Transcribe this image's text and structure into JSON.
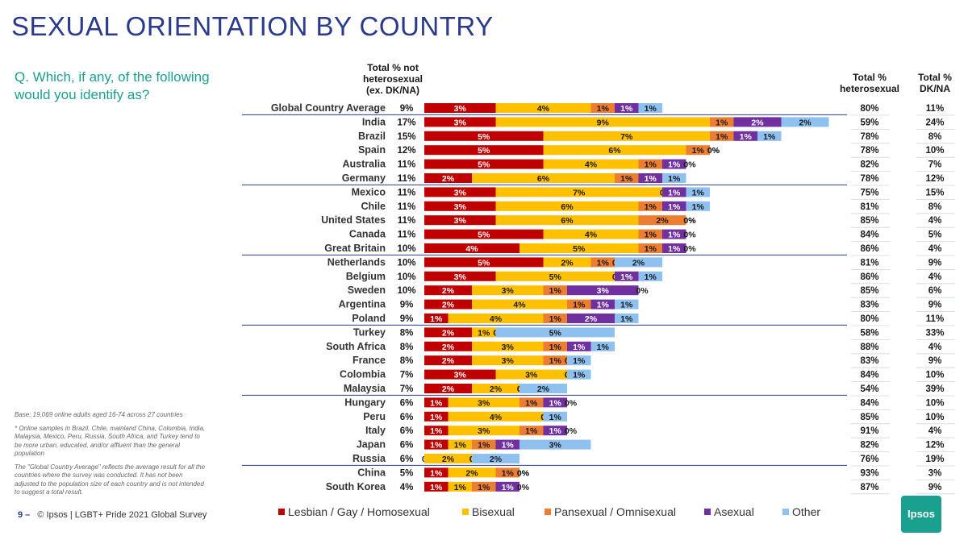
{
  "title": "SEXUAL ORIENTATION BY COUNTRY",
  "question": "Q. Which, if any, of the following would you identify as?",
  "base_note": [
    "Base: 19,069 online adults aged 16-74 across 27 countries",
    "* Online samples in Brazil, Chile, mainland China, Colombia, India, Malaysia, Mexico, Peru, Russia, South Africa, and Turkey tend to be more urban, educated, and/or affluent than the general population",
    "The \"Global Country Average\" reflects the average result for all the countries where the survey was conducted. It has not been adjusted to the population size of each country and is not intended to suggest a total result."
  ],
  "footer": {
    "page": "9 –",
    "text": "© Ipsos | LGBT+ Pride 2021 Global Survey"
  },
  "logo": "Ipsos",
  "chart_data": {
    "type": "bar",
    "stacked": true,
    "orientation": "horizontal",
    "columns": {
      "not_hetero": [
        "Total % not",
        "heterosexual",
        "(ex. DK/NA)"
      ],
      "hetero": [
        "Total %",
        "heterosexual"
      ],
      "dkna": [
        "Total %",
        "DK/NA"
      ]
    },
    "series_names": [
      "Lesbian / Gay / Homosexual",
      "Bisexual",
      "Pansexual / Omnisexual",
      "Asexual",
      "Other"
    ],
    "colors": [
      "#c00000",
      "#ffc000",
      "#ed7d31",
      "#7030a0",
      "#8ec1f0"
    ],
    "groups_end_after": [
      5,
      10,
      15,
      20,
      25
    ],
    "rows": [
      {
        "country": "Global Country Average",
        "total": "9%",
        "values": [
          3,
          4,
          1,
          1,
          1
        ],
        "labels": [
          "3%",
          "4%",
          "1%",
          "1%",
          "1%"
        ],
        "hetero": "80%",
        "dkna": "11%"
      },
      {
        "country": "India",
        "total": "17%",
        "values": [
          3,
          9,
          1,
          2,
          2
        ],
        "labels": [
          "3%",
          "9%",
          "1%",
          "2%",
          "2%"
        ],
        "hetero": "59%",
        "dkna": "24%"
      },
      {
        "country": "Brazil",
        "total": "15%",
        "values": [
          5,
          7,
          1,
          1,
          1
        ],
        "labels": [
          "5%",
          "7%",
          "1%",
          "1%",
          "1%"
        ],
        "hetero": "78%",
        "dkna": "8%"
      },
      {
        "country": "Spain",
        "total": "12%",
        "values": [
          5,
          6,
          1,
          0,
          0
        ],
        "labels": [
          "5%",
          "6%",
          "1%",
          "0%",
          "0%"
        ],
        "hetero": "78%",
        "dkna": "10%"
      },
      {
        "country": "Australia",
        "total": "11%",
        "values": [
          5,
          4,
          1,
          1,
          0
        ],
        "labels": [
          "5%",
          "4%",
          "1%",
          "1%",
          "0%"
        ],
        "hetero": "82%",
        "dkna": "7%"
      },
      {
        "country": "Germany",
        "total": "11%",
        "values": [
          2,
          6,
          1,
          1,
          1
        ],
        "labels": [
          "2%",
          "6%",
          "1%",
          "1%",
          "1%"
        ],
        "hetero": "78%",
        "dkna": "12%"
      },
      {
        "country": "Mexico",
        "total": "11%",
        "values": [
          3,
          7,
          0,
          1,
          1
        ],
        "labels": [
          "3%",
          "7%",
          "0%",
          "1%",
          "1%"
        ],
        "hetero": "75%",
        "dkna": "15%"
      },
      {
        "country": "Chile",
        "total": "11%",
        "values": [
          3,
          6,
          1,
          1,
          1
        ],
        "labels": [
          "3%",
          "6%",
          "1%",
          "1%",
          "1%"
        ],
        "hetero": "81%",
        "dkna": "8%"
      },
      {
        "country": "United States",
        "total": "11%",
        "values": [
          3,
          6,
          2,
          0,
          0
        ],
        "labels": [
          "3%",
          "6%",
          "2%",
          "0%",
          "0%"
        ],
        "hetero": "85%",
        "dkna": "4%"
      },
      {
        "country": "Canada",
        "total": "11%",
        "values": [
          5,
          4,
          1,
          1,
          0
        ],
        "labels": [
          "5%",
          "4%",
          "1%",
          "1%",
          "0%"
        ],
        "hetero": "84%",
        "dkna": "5%"
      },
      {
        "country": "Great Britain",
        "total": "10%",
        "values": [
          4,
          5,
          1,
          1,
          0
        ],
        "labels": [
          "4%",
          "5%",
          "1%",
          "1%",
          "0%"
        ],
        "hetero": "86%",
        "dkna": "4%"
      },
      {
        "country": "Netherlands",
        "total": "10%",
        "values": [
          5,
          2,
          1,
          0,
          2
        ],
        "labels": [
          "5%",
          "2%",
          "1%",
          "0%",
          "2%"
        ],
        "hetero": "81%",
        "dkna": "9%"
      },
      {
        "country": "Belgium",
        "total": "10%",
        "values": [
          3,
          5,
          0,
          1,
          1
        ],
        "labels": [
          "3%",
          "5%",
          "0%",
          "1%",
          "1%"
        ],
        "hetero": "86%",
        "dkna": "4%"
      },
      {
        "country": "Sweden",
        "total": "10%",
        "values": [
          2,
          3,
          1,
          3,
          0
        ],
        "labels": [
          "2%",
          "3%",
          "1%",
          "3%",
          "0%"
        ],
        "hetero": "85%",
        "dkna": "6%"
      },
      {
        "country": "Argentina",
        "total": "9%",
        "values": [
          2,
          4,
          1,
          1,
          1
        ],
        "labels": [
          "2%",
          "4%",
          "1%",
          "1%",
          "1%"
        ],
        "hetero": "83%",
        "dkna": "9%"
      },
      {
        "country": "Poland",
        "total": "9%",
        "values": [
          1,
          4,
          1,
          2,
          1
        ],
        "labels": [
          "1%",
          "4%",
          "1%",
          "2%",
          "1%"
        ],
        "hetero": "80%",
        "dkna": "11%"
      },
      {
        "country": "Turkey",
        "total": "8%",
        "values": [
          2,
          1,
          0,
          0,
          5
        ],
        "labels": [
          "2%",
          "1%",
          "0%",
          "0%",
          "5%"
        ],
        "hetero": "58%",
        "dkna": "33%"
      },
      {
        "country": "South Africa",
        "total": "8%",
        "values": [
          2,
          3,
          1,
          1,
          1
        ],
        "labels": [
          "2%",
          "3%",
          "1%",
          "1%",
          "1%"
        ],
        "hetero": "88%",
        "dkna": "4%"
      },
      {
        "country": "France",
        "total": "8%",
        "values": [
          2,
          3,
          1,
          0,
          1
        ],
        "labels": [
          "2%",
          "3%",
          "1%",
          "0%",
          "1%"
        ],
        "hetero": "83%",
        "dkna": "9%"
      },
      {
        "country": "Colombia",
        "total": "7%",
        "values": [
          3,
          3,
          0,
          0,
          1
        ],
        "labels": [
          "3%",
          "3%",
          "0%",
          "0%",
          "1%"
        ],
        "hetero": "84%",
        "dkna": "10%"
      },
      {
        "country": "Malaysia",
        "total": "7%",
        "values": [
          2,
          2,
          0,
          0,
          2
        ],
        "labels": [
          "2%",
          "2%",
          "0%",
          "0%",
          "2%"
        ],
        "hetero": "54%",
        "dkna": "39%"
      },
      {
        "country": "Hungary",
        "total": "6%",
        "values": [
          1,
          3,
          1,
          1,
          0
        ],
        "labels": [
          "1%",
          "3%",
          "1%",
          "1%",
          "0%"
        ],
        "hetero": "84%",
        "dkna": "10%"
      },
      {
        "country": "Peru",
        "total": "6%",
        "values": [
          1,
          4,
          0,
          0,
          1
        ],
        "labels": [
          "1%",
          "4%",
          "0%",
          "0%",
          "1%"
        ],
        "hetero": "85%",
        "dkna": "10%"
      },
      {
        "country": "Italy",
        "total": "6%",
        "values": [
          1,
          3,
          1,
          1,
          0
        ],
        "labels": [
          "1%",
          "3%",
          "1%",
          "1%",
          "0%"
        ],
        "hetero": "91%",
        "dkna": "4%"
      },
      {
        "country": "Japan",
        "total": "6%",
        "values": [
          1,
          1,
          1,
          1,
          3
        ],
        "labels": [
          "1%",
          "1%",
          "1%",
          "1%",
          "3%"
        ],
        "hetero": "82%",
        "dkna": "12%"
      },
      {
        "country": "Russia",
        "total": "6%",
        "values": [
          0,
          2,
          0,
          0,
          2
        ],
        "labels": [
          "0%",
          "2%",
          "0%",
          "0%",
          "2%"
        ],
        "hetero": "76%",
        "dkna": "19%"
      },
      {
        "country": "China",
        "total": "5%",
        "values": [
          1,
          2,
          1,
          0,
          0
        ],
        "labels": [
          "1%",
          "2%",
          "1%",
          "0%",
          "0%"
        ],
        "hetero": "93%",
        "dkna": "3%"
      },
      {
        "country": "South Korea",
        "total": "4%",
        "values": [
          1,
          1,
          1,
          1,
          0
        ],
        "labels": [
          "1%",
          "1%",
          "1%",
          "1%",
          "0%"
        ],
        "hetero": "87%",
        "dkna": "9%"
      }
    ]
  }
}
